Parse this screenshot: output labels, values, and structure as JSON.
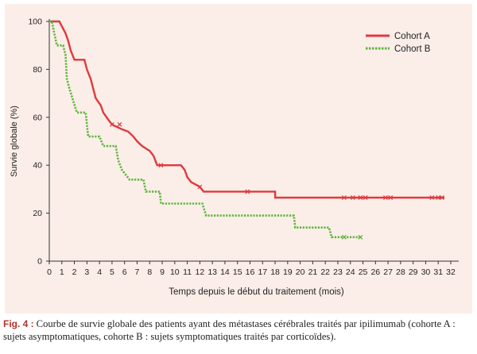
{
  "chart_data": {
    "type": "line",
    "title": "",
    "xlabel": "Temps depuis le début du traitement (mois)",
    "ylabel": "Survie globale (%)",
    "xlim": [
      0,
      32
    ],
    "ylim": [
      0,
      100
    ],
    "xticks": [
      0,
      1,
      2,
      3,
      4,
      5,
      6,
      7,
      8,
      9,
      10,
      11,
      12,
      13,
      14,
      15,
      16,
      17,
      18,
      19,
      20,
      21,
      22,
      23,
      24,
      25,
      26,
      27,
      28,
      29,
      30,
      31,
      32
    ],
    "yticks": [
      0,
      20,
      40,
      60,
      80,
      100
    ],
    "grid": false,
    "legend_position": "top-right",
    "series": [
      {
        "name": "Cohort A",
        "color": "#e0393e",
        "style": "solid",
        "points": [
          [
            0,
            100
          ],
          [
            0.8,
            100
          ],
          [
            1.0,
            98
          ],
          [
            1.3,
            95
          ],
          [
            1.5,
            92
          ],
          [
            1.7,
            88
          ],
          [
            2.0,
            84
          ],
          [
            2.8,
            84
          ],
          [
            3.0,
            80
          ],
          [
            3.3,
            76
          ],
          [
            3.5,
            72
          ],
          [
            3.7,
            68
          ],
          [
            4.1,
            65
          ],
          [
            4.3,
            62
          ],
          [
            4.7,
            59
          ],
          [
            5.0,
            57
          ],
          [
            5.8,
            55
          ],
          [
            6.3,
            54
          ],
          [
            6.7,
            52
          ],
          [
            7.0,
            50
          ],
          [
            7.4,
            48
          ],
          [
            8.0,
            46
          ],
          [
            8.3,
            44
          ],
          [
            8.6,
            40
          ],
          [
            10.5,
            40
          ],
          [
            10.8,
            38
          ],
          [
            11.0,
            35
          ],
          [
            11.3,
            33
          ],
          [
            12.0,
            31
          ],
          [
            12.3,
            29
          ],
          [
            18.0,
            29
          ],
          [
            18.0,
            26.5
          ],
          [
            31.5,
            26.5
          ]
        ],
        "censored": [
          5.0,
          5.6,
          8.9,
          12.0,
          15.8,
          23.5,
          24.2,
          24.8,
          25.2,
          26.8,
          27.2,
          30.5,
          31.0,
          31.3
        ]
      },
      {
        "name": "Cohort B",
        "color": "#5cb53a",
        "style": "dotted",
        "points": [
          [
            0,
            100
          ],
          [
            0.2,
            100
          ],
          [
            0.4,
            95
          ],
          [
            0.6,
            90
          ],
          [
            1.1,
            90
          ],
          [
            1.3,
            86
          ],
          [
            1.4,
            76
          ],
          [
            1.6,
            72
          ],
          [
            1.9,
            67
          ],
          [
            2.2,
            62
          ],
          [
            2.9,
            62
          ],
          [
            3.1,
            52
          ],
          [
            4.0,
            52
          ],
          [
            4.3,
            48
          ],
          [
            5.3,
            48
          ],
          [
            5.5,
            42
          ],
          [
            5.8,
            38
          ],
          [
            6.4,
            34
          ],
          [
            7.5,
            34
          ],
          [
            7.7,
            29
          ],
          [
            8.8,
            29
          ],
          [
            8.9,
            24
          ],
          [
            12.2,
            24
          ],
          [
            12.5,
            19
          ],
          [
            19.5,
            19
          ],
          [
            19.6,
            14
          ],
          [
            22.3,
            14
          ],
          [
            22.5,
            10
          ],
          [
            24.9,
            10
          ]
        ],
        "censored": [
          23.5,
          24.8
        ]
      }
    ]
  },
  "caption": {
    "label": "Fig. 4 :",
    "text": "Courbe de survie globale des patients ayant des métastases cérébrales traités par ipilimumab (cohorte A : sujets asymptomatiques, cohorte B : sujets symptomatiques traités par corticoïdes)."
  }
}
